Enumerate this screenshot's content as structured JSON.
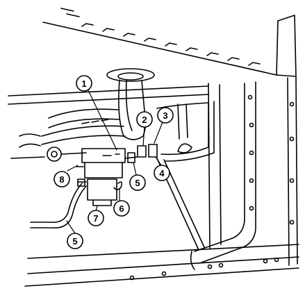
{
  "diagram": {
    "style": "black-and-white technical line illustration",
    "colors": {
      "ink": "#000000",
      "paper": "#ffffff"
    },
    "callouts": [
      {
        "id": "c1",
        "label": "1"
      },
      {
        "id": "c2",
        "label": "2"
      },
      {
        "id": "c3",
        "label": "3"
      },
      {
        "id": "c4",
        "label": "4"
      },
      {
        "id": "c5a",
        "label": "5"
      },
      {
        "id": "c5b",
        "label": "5"
      },
      {
        "id": "c6",
        "label": "6"
      },
      {
        "id": "c7",
        "label": "7"
      },
      {
        "id": "c8",
        "label": "8"
      }
    ]
  }
}
